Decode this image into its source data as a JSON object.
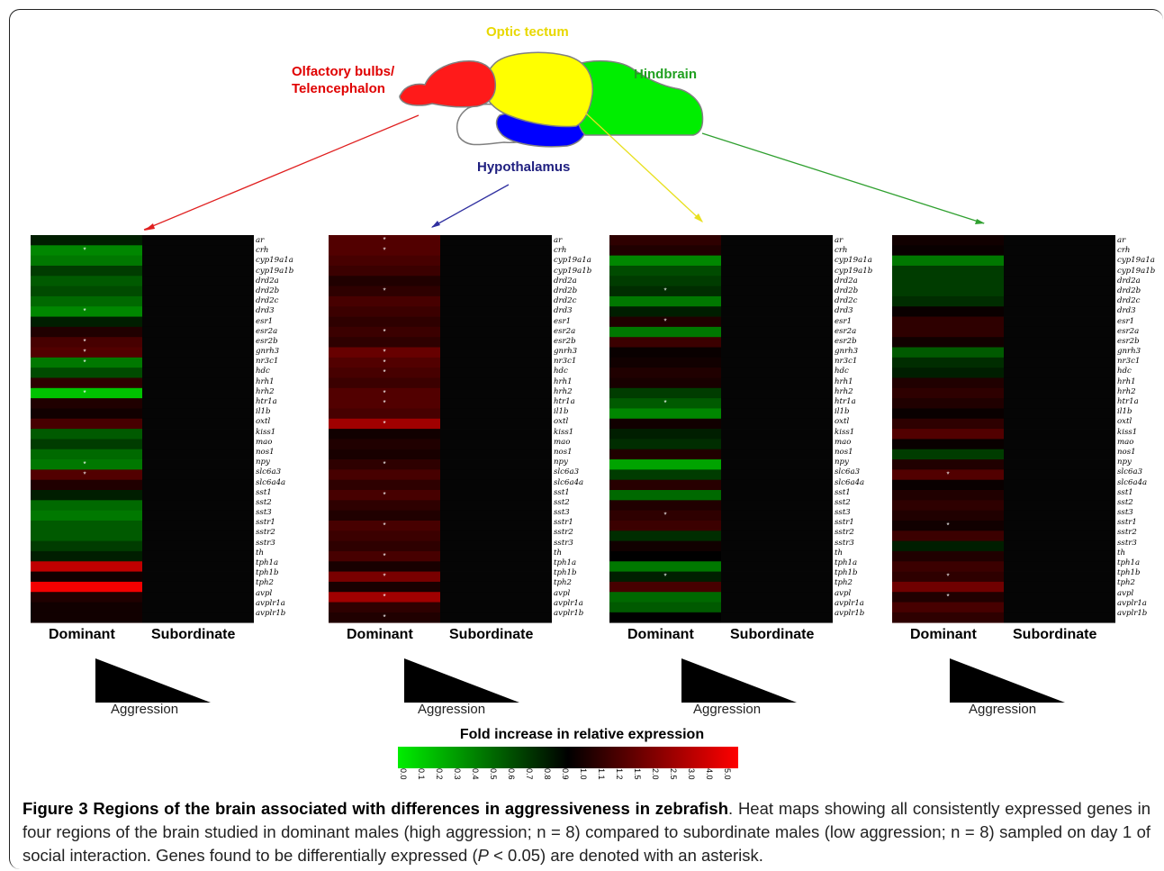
{
  "brain": {
    "labels": {
      "optic": "Optic tectum",
      "olf1": "Olfactory bulbs/",
      "olf2": "Telencephalon",
      "hind": "Hindbrain",
      "hypo": "Hypothalamus"
    },
    "colors": {
      "olfactory": "#ff1a1a",
      "optic": "#ffff00",
      "hindbrain": "#00e000",
      "hypothalamus": "#0000ff",
      "outline": "#808080"
    }
  },
  "genes": [
    "ar",
    "crh",
    "cyp19a1a",
    "cyp19a1b",
    "drd2a",
    "drd2b",
    "drd2c",
    "drd3",
    "esr1",
    "esr2a",
    "esr2b",
    "gnrh3",
    "nr3c1",
    "hdc",
    "hrh1",
    "hrh2",
    "htr1a",
    "il1b",
    "oxtl",
    "kiss1",
    "mao",
    "nos1",
    "npy",
    "slc6a3",
    "slc6a4a",
    "sst1",
    "sst2",
    "sst3",
    "sstr1",
    "sstr2",
    "sstr3",
    "th",
    "tph1a",
    "tph1b",
    "tph2",
    "avpl",
    "avplr1a",
    "avplr1b"
  ],
  "column_labels": {
    "dominant": "Dominant",
    "subordinate": "Subordinate"
  },
  "aggression_label": "Aggression",
  "scale": {
    "title": "Fold increase in relative expression",
    "ticks": [
      "0.0",
      "0.1",
      "0.2",
      "0.3",
      "0.4",
      "0.5",
      "0.6",
      "0.7",
      "0.8",
      "0.9",
      "1.0",
      "1.1",
      "1.2",
      "1.5",
      "2.0",
      "2.5",
      "3.0",
      "4.0",
      "5.0"
    ]
  },
  "chart_data": {
    "type": "heatmap",
    "rows": "genes",
    "columns": [
      "Dominant",
      "Subordinate"
    ],
    "note_subordinate": 1.0,
    "panels": [
      {
        "region": "Olfactory bulbs/Telencephalon",
        "dominant_fold": [
          0.9,
          0.55,
          0.6,
          0.8,
          0.7,
          0.75,
          0.65,
          0.55,
          0.9,
          1.2,
          1.5,
          1.6,
          0.6,
          0.75,
          1.3,
          0.35,
          1.2,
          1.1,
          1.5,
          0.7,
          0.8,
          0.65,
          0.6,
          1.6,
          1.2,
          0.9,
          0.65,
          0.6,
          0.7,
          0.7,
          0.8,
          0.9,
          3.0,
          1.1,
          4.0,
          1.2,
          1.1,
          1.1
        ],
        "significant": [
          false,
          true,
          false,
          false,
          false,
          false,
          false,
          true,
          false,
          false,
          true,
          true,
          true,
          false,
          false,
          true,
          false,
          false,
          false,
          false,
          false,
          false,
          true,
          true,
          false,
          false,
          false,
          false,
          false,
          false,
          false,
          false,
          false,
          false,
          false,
          false,
          false,
          false
        ]
      },
      {
        "region": "Hypothalamus",
        "dominant_fold": [
          1.6,
          1.6,
          1.5,
          1.4,
          1.2,
          1.3,
          1.5,
          1.4,
          1.3,
          1.4,
          1.3,
          1.8,
          1.6,
          1.5,
          1.4,
          1.6,
          1.6,
          1.5,
          2.5,
          1.1,
          1.2,
          1.15,
          1.3,
          1.5,
          1.3,
          1.5,
          1.3,
          1.2,
          1.5,
          1.4,
          1.3,
          1.5,
          1.15,
          2.0,
          1.15,
          2.5,
          1.3,
          1.2
        ],
        "significant": [
          true,
          true,
          false,
          false,
          false,
          true,
          false,
          false,
          false,
          true,
          false,
          true,
          true,
          true,
          false,
          true,
          true,
          false,
          true,
          false,
          false,
          false,
          true,
          false,
          false,
          true,
          false,
          false,
          true,
          false,
          false,
          true,
          false,
          true,
          false,
          true,
          false,
          true
        ]
      },
      {
        "region": "Optic tectum",
        "dominant_fold": [
          1.3,
          1.2,
          0.55,
          0.75,
          0.8,
          0.85,
          0.6,
          0.9,
          1.2,
          0.6,
          1.4,
          1.05,
          1.1,
          1.2,
          1.15,
          0.8,
          0.7,
          0.55,
          1.1,
          0.9,
          0.85,
          1.2,
          0.45,
          0.8,
          1.25,
          0.65,
          1.2,
          1.3,
          1.4,
          0.85,
          1.1,
          1.0,
          0.6,
          0.9,
          1.5,
          0.65,
          0.7,
          1.0
        ],
        "significant": [
          false,
          false,
          false,
          false,
          false,
          true,
          false,
          false,
          true,
          false,
          false,
          false,
          false,
          false,
          false,
          false,
          true,
          false,
          false,
          false,
          false,
          false,
          false,
          false,
          false,
          false,
          false,
          true,
          false,
          false,
          false,
          false,
          false,
          true,
          false,
          false,
          false,
          false
        ]
      },
      {
        "region": "Hindbrain",
        "dominant_fold": [
          1.1,
          1.05,
          0.6,
          0.8,
          0.8,
          0.8,
          0.85,
          1.05,
          1.3,
          1.3,
          1.1,
          0.7,
          0.85,
          0.9,
          1.2,
          1.3,
          1.2,
          1.05,
          1.3,
          1.6,
          1.05,
          0.8,
          1.2,
          1.6,
          1.05,
          1.2,
          1.3,
          1.2,
          1.1,
          1.4,
          0.9,
          1.2,
          1.4,
          1.3,
          1.9,
          1.2,
          1.5,
          1.3
        ],
        "significant": [
          false,
          false,
          false,
          false,
          false,
          false,
          false,
          false,
          false,
          false,
          false,
          false,
          false,
          false,
          false,
          false,
          false,
          false,
          false,
          false,
          false,
          false,
          false,
          true,
          false,
          false,
          false,
          false,
          true,
          false,
          false,
          false,
          false,
          true,
          false,
          true,
          false,
          false
        ]
      }
    ]
  },
  "caption": {
    "label": "Figure 3 Regions of the brain associated with differences in aggressiveness in zebrafish",
    "text1": ". Heat maps showing all consistently expressed genes in four regions of the brain studied in dominant males (high aggression; n = 8) compared to subordinate males (low aggression; n = 8) sampled on day 1 of social interaction. Genes found to be differentially expressed (",
    "p": "P",
    "text2": " < 0.05) are denoted with an asterisk."
  }
}
